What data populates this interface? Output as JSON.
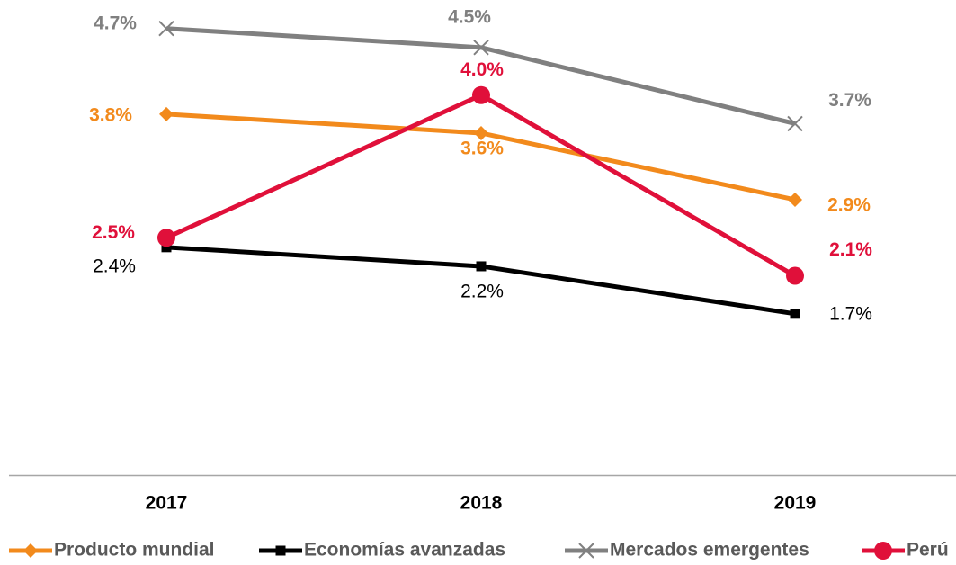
{
  "chart_data": {
    "type": "line",
    "categories": [
      "2017",
      "2018",
      "2019"
    ],
    "ylim": [
      0,
      5
    ],
    "series": [
      {
        "name": "Producto mundial",
        "color": "#f28a1c",
        "marker": "diamond",
        "values": [
          3.8,
          3.6,
          2.9
        ],
        "value_labels": [
          "3.8%",
          "3.6%",
          "2.9%"
        ]
      },
      {
        "name": "Economías avanzadas",
        "color": "#000000",
        "marker": "square",
        "values": [
          2.4,
          2.2,
          1.7
        ],
        "value_labels": [
          "2.4%",
          "2.2%",
          "1.7%"
        ]
      },
      {
        "name": "Mercados emergentes",
        "color": "#808080",
        "marker": "x",
        "values": [
          4.7,
          4.5,
          3.7
        ],
        "value_labels": [
          "4.7%",
          "4.5%",
          "3.7%"
        ]
      },
      {
        "name": "Perú",
        "color": "#e0103a",
        "marker": "circle",
        "values": [
          2.5,
          4.0,
          2.1
        ],
        "value_labels": [
          "2.5%",
          "4.0%",
          "2.1%"
        ]
      }
    ],
    "legend": "bottom"
  }
}
